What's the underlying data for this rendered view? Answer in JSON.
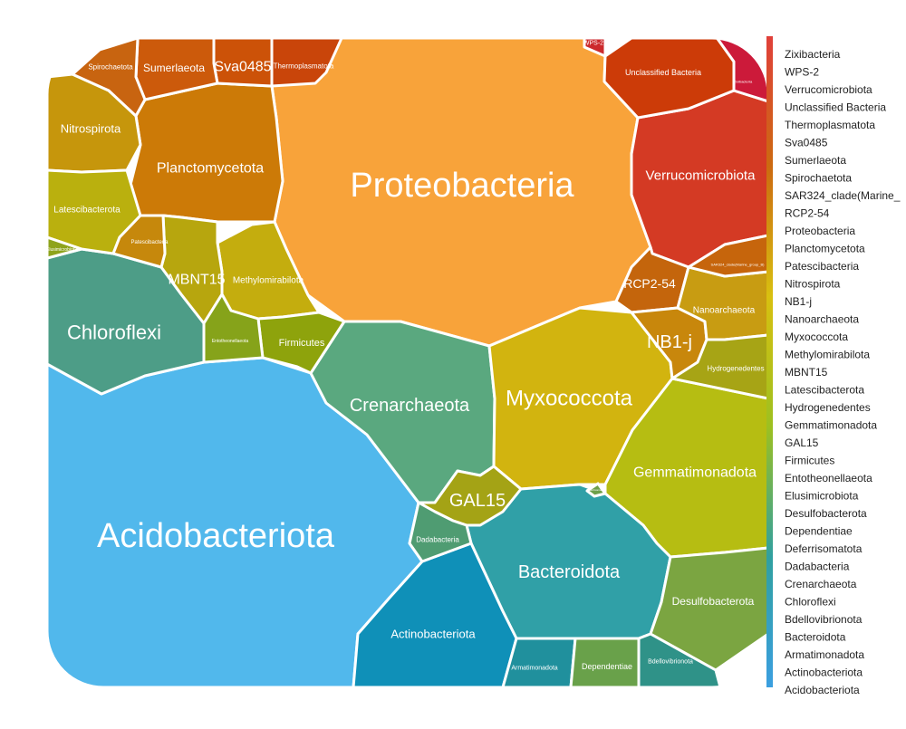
{
  "chart_data": {
    "type": "voronoi-treemap",
    "title": "",
    "cells": [
      {
        "name": "Proteobacteria",
        "value": 11.7,
        "color": "#f8a33a"
      },
      {
        "name": "Acidobacteriota",
        "value": 15.4,
        "color": "#51b8ec"
      },
      {
        "name": "Crenarchaeota",
        "value": 4.9,
        "color": "#5aa87f"
      },
      {
        "name": "Myxococcota",
        "value": 4.6,
        "color": "#d2b40f"
      },
      {
        "name": "Chloroflexi",
        "value": 4.5,
        "color": "#4d9d87"
      },
      {
        "name": "Gemmatimonadota",
        "value": 3.8,
        "color": "#b6bd12"
      },
      {
        "name": "Bacteroidota",
        "value": 3.6,
        "color": "#30a0a7"
      },
      {
        "name": "Verrucomicrobiota",
        "value": 3.4,
        "color": "#d43a24"
      },
      {
        "name": "Planctomycetota",
        "value": 2.7,
        "color": "#cc7a07"
      },
      {
        "name": "Actinobacteriota",
        "value": 2.3,
        "color": "#0f90b8"
      },
      {
        "name": "Desulfobacterota",
        "value": 2.1,
        "color": "#7ba541"
      },
      {
        "name": "Unclassified Bacteria",
        "value": 1.9,
        "color": "#cc3b08"
      },
      {
        "name": "Methylomirabilota",
        "value": 1.3,
        "color": "#c4ad0e"
      },
      {
        "name": "Nitrospirota",
        "value": 1.2,
        "color": "#c6960c"
      },
      {
        "name": "Latescibacterota",
        "value": 1.0,
        "color": "#bab00e"
      },
      {
        "name": "Sva0485",
        "value": 0.7,
        "color": "#cc5208"
      },
      {
        "name": "Sumerlaeota",
        "value": 0.8,
        "color": "#cc5a0b"
      },
      {
        "name": "Thermoplasmatota",
        "value": 0.8,
        "color": "#c9450a"
      },
      {
        "name": "Spirochaetota",
        "value": 0.8,
        "color": "#c86410"
      },
      {
        "name": "GAL15",
        "value": 0.6,
        "color": "#a4a315"
      },
      {
        "name": "MBNT15",
        "value": 0.7,
        "color": "#b7a60e"
      },
      {
        "name": "Firmicutes",
        "value": 0.6,
        "color": "#8ea30c"
      },
      {
        "name": "RCP2-54",
        "value": 0.6,
        "color": "#c4650c"
      },
      {
        "name": "NB1-j",
        "value": 0.6,
        "color": "#c8870c"
      },
      {
        "name": "Nanoarchaeota",
        "value": 0.7,
        "color": "#c89c12"
      },
      {
        "name": "Hydrogenedentes",
        "value": 0.5,
        "color": "#a7a415"
      },
      {
        "name": "Dadabacteria",
        "value": 0.4,
        "color": "#4f9c72"
      },
      {
        "name": "Armatimonadota",
        "value": 0.4,
        "color": "#20909d"
      },
      {
        "name": "Dependentiae",
        "value": 0.4,
        "color": "#69a14a"
      },
      {
        "name": "Bdellovibrionota",
        "value": 0.4,
        "color": "#2f9288"
      },
      {
        "name": "Patescibacteria",
        "value": 0.35,
        "color": "#c6880c"
      },
      {
        "name": "Elusimicrobiota",
        "value": 0.3,
        "color": "#8ea31c"
      },
      {
        "name": "Entotheonellaeota",
        "value": 0.25,
        "color": "#86a31a"
      },
      {
        "name": "SAR324_clade(Marine_group_B)",
        "value": 0.6,
        "color": "#c6650c"
      },
      {
        "name": "WPS-2",
        "value": 0.06,
        "color": "#cc2a2c"
      },
      {
        "name": "Zixibacteria",
        "value": 0.1,
        "color": "#cc1a3a"
      },
      {
        "name": "Deferrisomatota",
        "value": 0.04,
        "color": "#6ea04a"
      }
    ],
    "legend": {
      "placement": "right",
      "gradient_colors": [
        "#e0403a",
        "#cc6a10",
        "#d8c010",
        "#9dc020",
        "#30a0a0",
        "#3b9fe0"
      ],
      "entries": [
        "Zixibacteria",
        "WPS-2",
        "Verrucomicrobiota",
        "Unclassified Bacteria",
        "Thermoplasmatota",
        "Sva0485",
        "Sumerlaeota",
        "Spirochaetota",
        "SAR324_clade(Marine_",
        "RCP2-54",
        "Proteobacteria",
        "Planctomycetota",
        "Patescibacteria",
        "Nitrospirota",
        "NB1-j",
        "Nanoarchaeota",
        "Myxococcota",
        "Methylomirabilota",
        "MBNT15",
        "Latescibacterota",
        "Hydrogenedentes",
        "Gemmatimonadota",
        "GAL15",
        "Firmicutes",
        "Entotheonellaeota",
        "Elusimicrobiota",
        "Desulfobacterota",
        "Dependentiae",
        "Deferrisomatota",
        "Dadabacteria",
        "Crenarchaeota",
        "Chloroflexi",
        "Bdellovibrionota",
        "Bacteroidota",
        "Armatimonadota",
        "Actinobacteriota",
        "Acidobacteriota"
      ]
    }
  }
}
